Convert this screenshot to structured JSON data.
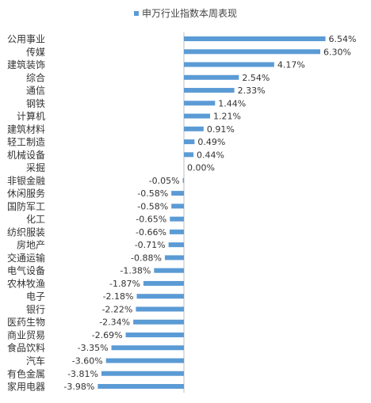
{
  "chart_data": {
    "type": "bar",
    "orientation": "horizontal",
    "title": "",
    "legend": {
      "position": "top",
      "labels": [
        "申万行业指数本周表现"
      ]
    },
    "series": [
      {
        "name": "申万行业指数本周表现",
        "color": "#5b9bd5",
        "values": [
          6.54,
          6.3,
          4.17,
          2.54,
          2.33,
          1.44,
          1.21,
          0.91,
          0.49,
          0.44,
          0.0,
          -0.05,
          -0.58,
          -0.58,
          -0.65,
          -0.66,
          -0.71,
          -0.88,
          -1.38,
          -1.87,
          -2.18,
          -2.22,
          -2.34,
          -2.69,
          -3.35,
          -3.6,
          -3.81,
          -3.98
        ]
      }
    ],
    "categories": [
      "公用事业",
      "传媒",
      "建筑装饰",
      "综合",
      "通信",
      "钢铁",
      "计算机",
      "建筑材料",
      "轻工制造",
      "机械设备",
      "采掘",
      "非银金融",
      "休闲服务",
      "国防军工",
      "化工",
      "纺织服装",
      "房地产",
      "交通运输",
      "电气设备",
      "农林牧渔",
      "电子",
      "银行",
      "医药生物",
      "商业贸易",
      "食品饮料",
      "汽车",
      "有色金属",
      "家用电器"
    ],
    "data_labels": [
      "6.54%",
      "6.30%",
      "4.17%",
      "2.54%",
      "2.33%",
      "1.44%",
      "1.21%",
      "0.91%",
      "0.49%",
      "0.44%",
      "0.00%",
      "-0.05%",
      "-0.58%",
      "-0.58%",
      "-0.65%",
      "-0.66%",
      "-0.71%",
      "-0.88%",
      "-1.38%",
      "-1.87%",
      "-2.18%",
      "-2.22%",
      "-2.34%",
      "-2.69%",
      "-3.35%",
      "-3.60%",
      "-3.81%",
      "-3.98%"
    ],
    "xlim": [
      -3.98,
      6.54
    ],
    "grid": false,
    "axis_color": "#bfbfbf"
  }
}
